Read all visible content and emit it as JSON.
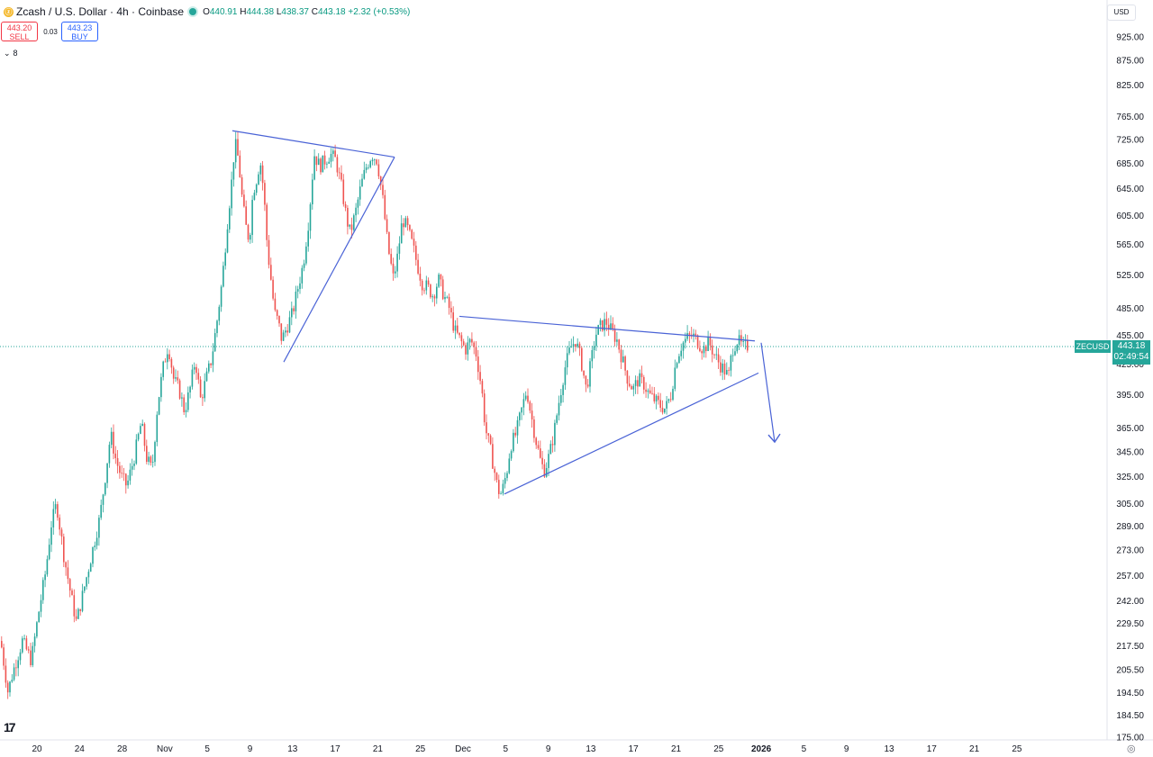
{
  "legend": {
    "coin_icon": "zcash-coin-icon",
    "title": "Zcash / U.S. Dollar · 4h · Coinbase",
    "open_key": "O",
    "open": "440.91",
    "high_key": "H",
    "high": "444.38",
    "low_key": "L",
    "low": "438.37",
    "close_key": "C",
    "close": "443.18",
    "change": "+2.32 (+0.53%)"
  },
  "trade": {
    "sell_price": "443.20",
    "sell_label": "SELL",
    "spread": "0.03",
    "buy_price": "443.23",
    "buy_label": "BUY"
  },
  "indicator_toggle": {
    "icon": "chevron-down-icon",
    "count": "8"
  },
  "price_scale": {
    "currency": "USD"
  },
  "current_price": {
    "symbol": "ZECUSD",
    "price": "443.18",
    "countdown": "02:49:54",
    "color": "#26a69a"
  },
  "colors": {
    "up": "#26a69a",
    "down": "#ef5350",
    "drawing": "#4a63d6"
  },
  "chart_data": {
    "type": "candlestick",
    "log_scale": true,
    "grid": false,
    "ylim": [
      175,
      1000
    ],
    "y_tick_labels": [
      "925.00",
      "875.00",
      "825.00",
      "765.00",
      "725.00",
      "685.00",
      "645.00",
      "605.00",
      "565.00",
      "525.00",
      "485.00",
      "455.00",
      "425.00",
      "395.00",
      "365.00",
      "345.00",
      "325.00",
      "305.00",
      "289.00",
      "273.00",
      "257.00",
      "242.00",
      "229.50",
      "217.50",
      "205.50",
      "194.50",
      "184.50",
      "175.00"
    ],
    "x_tick_labels": [
      "20",
      "24",
      "28",
      "Nov",
      "5",
      "9",
      "13",
      "17",
      "21",
      "25",
      "Dec",
      "5",
      "9",
      "13",
      "17",
      "21",
      "25",
      "2026",
      "5",
      "9",
      "13",
      "17",
      "21",
      "25"
    ],
    "series_points": [
      [
        0,
        220
      ],
      [
        8,
        195
      ],
      [
        14,
        205
      ],
      [
        24,
        220
      ],
      [
        34,
        210
      ],
      [
        42,
        235
      ],
      [
        50,
        260
      ],
      [
        56,
        290
      ],
      [
        62,
        305
      ],
      [
        70,
        270
      ],
      [
        78,
        245
      ],
      [
        84,
        230
      ],
      [
        92,
        248
      ],
      [
        100,
        268
      ],
      [
        110,
        295
      ],
      [
        116,
        325
      ],
      [
        122,
        360
      ],
      [
        128,
        338
      ],
      [
        134,
        325
      ],
      [
        140,
        318
      ],
      [
        148,
        340
      ],
      [
        156,
        370
      ],
      [
        162,
        340
      ],
      [
        168,
        330
      ],
      [
        174,
        385
      ],
      [
        180,
        420
      ],
      [
        186,
        445
      ],
      [
        192,
        410
      ],
      [
        198,
        400
      ],
      [
        204,
        380
      ],
      [
        210,
        400
      ],
      [
        216,
        430
      ],
      [
        222,
        390
      ],
      [
        228,
        410
      ],
      [
        234,
        430
      ],
      [
        240,
        470
      ],
      [
        246,
        520
      ],
      [
        252,
        600
      ],
      [
        256,
        650
      ],
      [
        260,
        720
      ],
      [
        264,
        690
      ],
      [
        268,
        630
      ],
      [
        272,
        590
      ],
      [
        276,
        570
      ],
      [
        280,
        640
      ],
      [
        284,
        660
      ],
      [
        288,
        690
      ],
      [
        292,
        640
      ],
      [
        296,
        560
      ],
      [
        300,
        520
      ],
      [
        304,
        480
      ],
      [
        308,
        470
      ],
      [
        312,
        450
      ],
      [
        318,
        465
      ],
      [
        324,
        480
      ],
      [
        330,
        510
      ],
      [
        336,
        540
      ],
      [
        342,
        600
      ],
      [
        348,
        700
      ],
      [
        354,
        680
      ],
      [
        360,
        690
      ],
      [
        366,
        700
      ],
      [
        372,
        690
      ],
      [
        378,
        650
      ],
      [
        384,
        600
      ],
      [
        388,
        580
      ],
      [
        394,
        610
      ],
      [
        400,
        650
      ],
      [
        406,
        680
      ],
      [
        412,
        700
      ],
      [
        418,
        690
      ],
      [
        424,
        630
      ],
      [
        430,
        560
      ],
      [
        436,
        520
      ],
      [
        440,
        545
      ],
      [
        446,
        600
      ],
      [
        452,
        585
      ],
      [
        458,
        560
      ],
      [
        462,
        540
      ],
      [
        468,
        515
      ],
      [
        474,
        510
      ],
      [
        480,
        500
      ],
      [
        486,
        520
      ],
      [
        492,
        500
      ],
      [
        498,
        485
      ],
      [
        504,
        460
      ],
      [
        510,
        450
      ],
      [
        516,
        440
      ],
      [
        522,
        450
      ],
      [
        528,
        435
      ],
      [
        534,
        400
      ],
      [
        538,
        365
      ],
      [
        544,
        345
      ],
      [
        548,
        330
      ],
      [
        552,
        315
      ],
      [
        556,
        312
      ],
      [
        562,
        330
      ],
      [
        566,
        350
      ],
      [
        572,
        360
      ],
      [
        578,
        380
      ],
      [
        584,
        400
      ],
      [
        588,
        380
      ],
      [
        594,
        355
      ],
      [
        600,
        335
      ],
      [
        604,
        330
      ],
      [
        610,
        345
      ],
      [
        614,
        360
      ],
      [
        620,
        390
      ],
      [
        626,
        420
      ],
      [
        632,
        440
      ],
      [
        638,
        450
      ],
      [
        644,
        430
      ],
      [
        650,
        400
      ],
      [
        656,
        430
      ],
      [
        660,
        455
      ],
      [
        666,
        465
      ],
      [
        672,
        470
      ],
      [
        678,
        460
      ],
      [
        684,
        450
      ],
      [
        690,
        430
      ],
      [
        696,
        410
      ],
      [
        702,
        400
      ],
      [
        708,
        410
      ],
      [
        714,
        405
      ],
      [
        720,
        395
      ],
      [
        726,
        390
      ],
      [
        732,
        385
      ],
      [
        738,
        382
      ],
      [
        744,
        395
      ],
      [
        750,
        430
      ],
      [
        756,
        445
      ],
      [
        762,
        452
      ],
      [
        768,
        455
      ],
      [
        774,
        448
      ],
      [
        780,
        440
      ],
      [
        786,
        448
      ],
      [
        792,
        435
      ],
      [
        798,
        425
      ],
      [
        804,
        418
      ],
      [
        808,
        412
      ],
      [
        812,
        440
      ],
      [
        818,
        450
      ],
      [
        824,
        442
      ],
      [
        830,
        444
      ]
    ],
    "drawings": [
      {
        "name": "triangle-1-upper-line",
        "from": [
          258,
          740
        ],
        "to": [
          438,
          695
        ]
      },
      {
        "name": "triangle-1-lower-line",
        "from": [
          315,
          427
        ],
        "to": [
          438,
          695
        ]
      },
      {
        "name": "triangle-2-upper-line",
        "from": [
          510,
          476
        ],
        "to": [
          838,
          449
        ]
      },
      {
        "name": "triangle-2-lower-line",
        "from": [
          560,
          312
        ],
        "to": [
          842,
          416
        ]
      },
      {
        "name": "projection-arrow",
        "from": [
          845,
          447
        ],
        "to": [
          860,
          353
        ]
      }
    ]
  }
}
